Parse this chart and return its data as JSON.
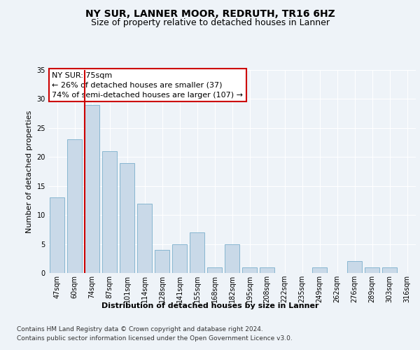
{
  "title": "NY SUR, LANNER MOOR, REDRUTH, TR16 6HZ",
  "subtitle": "Size of property relative to detached houses in Lanner",
  "xlabel": "Distribution of detached houses by size in Lanner",
  "ylabel": "Number of detached properties",
  "categories": [
    "47sqm",
    "60sqm",
    "74sqm",
    "87sqm",
    "101sqm",
    "114sqm",
    "128sqm",
    "141sqm",
    "155sqm",
    "168sqm",
    "182sqm",
    "195sqm",
    "208sqm",
    "222sqm",
    "235sqm",
    "249sqm",
    "262sqm",
    "276sqm",
    "289sqm",
    "303sqm",
    "316sqm"
  ],
  "values": [
    13,
    23,
    29,
    21,
    19,
    12,
    4,
    5,
    7,
    1,
    5,
    1,
    1,
    0,
    0,
    1,
    0,
    2,
    1,
    1,
    0
  ],
  "bar_color": "#c9d9e8",
  "bar_edge_color": "#7aafcc",
  "highlight_line_color": "#cc0000",
  "annotation_text": "NY SUR: 75sqm\n← 26% of detached houses are smaller (37)\n74% of semi-detached houses are larger (107) →",
  "annotation_box_color": "#ffffff",
  "annotation_box_edge_color": "#cc0000",
  "ylim": [
    0,
    35
  ],
  "yticks": [
    0,
    5,
    10,
    15,
    20,
    25,
    30,
    35
  ],
  "bg_color": "#eef3f8",
  "plot_bg_color": "#eef3f8",
  "grid_color": "#ffffff",
  "footer_line1": "Contains HM Land Registry data © Crown copyright and database right 2024.",
  "footer_line2": "Contains public sector information licensed under the Open Government Licence v3.0.",
  "title_fontsize": 10,
  "subtitle_fontsize": 9,
  "axis_label_fontsize": 8,
  "ylabel_fontsize": 8,
  "tick_fontsize": 7,
  "annotation_fontsize": 8,
  "footer_fontsize": 6.5
}
